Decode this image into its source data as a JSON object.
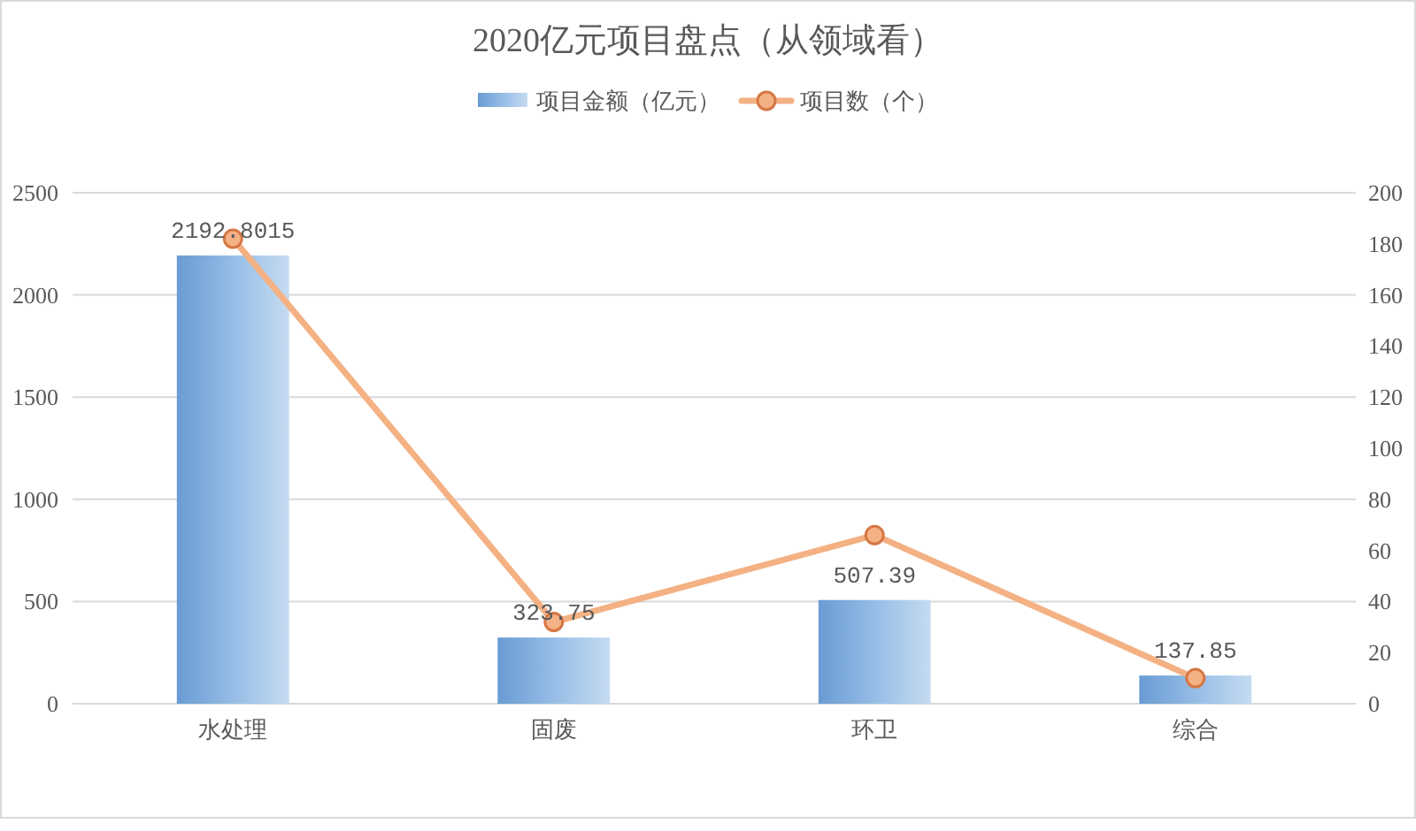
{
  "chart_data": {
    "type": "bar",
    "title": "2020亿元项目盘点（从领域看）",
    "categories": [
      "水处理",
      "固废",
      "环卫",
      "综合"
    ],
    "series": [
      {
        "name": "项目金额（亿元）",
        "color": "#95bde6",
        "values": [
          2192.8015,
          323.75,
          507.39,
          137.85
        ],
        "value_labels": [
          "2192.8015",
          "323.75",
          "507.39",
          "137.85"
        ]
      },
      {
        "name": "项目数（个）",
        "type": "line",
        "axis": "y2",
        "color": "#f4b183",
        "values": [
          182,
          32,
          66,
          10
        ]
      }
    ],
    "ylim": [
      0,
      2500
    ],
    "yticks": [
      0,
      500,
      1000,
      1500,
      2000,
      2500
    ],
    "y2lim": [
      0,
      200
    ],
    "y2ticks": [
      0,
      20,
      40,
      60,
      80,
      100,
      120,
      140,
      160,
      180,
      200
    ],
    "grid": "y",
    "legend": "top",
    "marker": "circle"
  }
}
